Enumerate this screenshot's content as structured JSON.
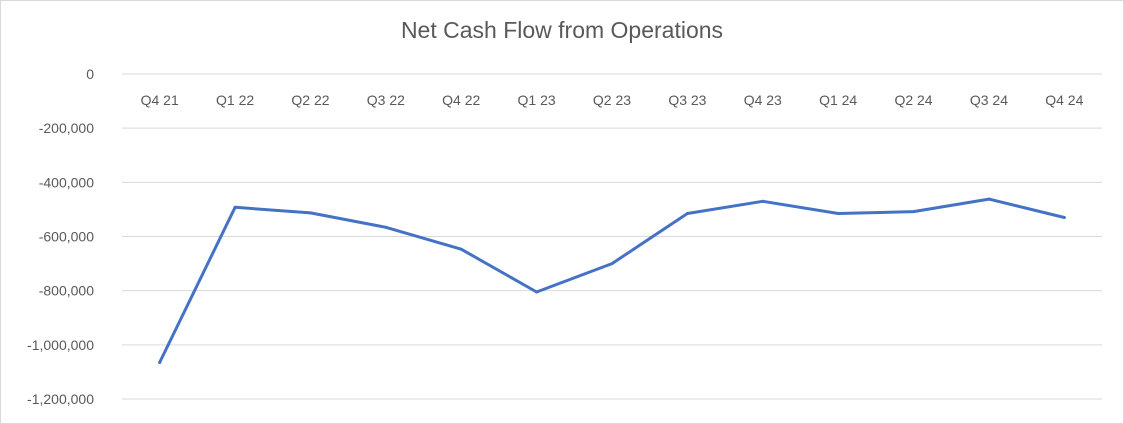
{
  "chart_data": {
    "type": "line",
    "title": "Net Cash Flow from Operations",
    "categories": [
      "Q4 21",
      "Q1 22",
      "Q2 22",
      "Q3 22",
      "Q4 22",
      "Q1 23",
      "Q2 23",
      "Q3 23",
      "Q4 23",
      "Q1 24",
      "Q2 24",
      "Q3 24",
      "Q4 24"
    ],
    "series": [
      {
        "values": [
          -1065000,
          -492000,
          -513000,
          -566000,
          -647000,
          -805000,
          -700000,
          -515000,
          -470000,
          -515000,
          -508000,
          -462000,
          -530000
        ],
        "color": "#4472c4"
      }
    ],
    "yticks": [
      0,
      -200000,
      -400000,
      -600000,
      -800000,
      -1000000,
      -1200000
    ],
    "ytick_labels": [
      "0",
      "-200,000",
      "-400,000",
      "-600,000",
      "-800,000",
      "-1,000,000",
      "-1,200,000"
    ],
    "ylim": [
      -1200000,
      0
    ],
    "xlabel": "",
    "ylabel": "",
    "grid": true,
    "legend": "none",
    "gridline_color": "#d9d9d9"
  }
}
